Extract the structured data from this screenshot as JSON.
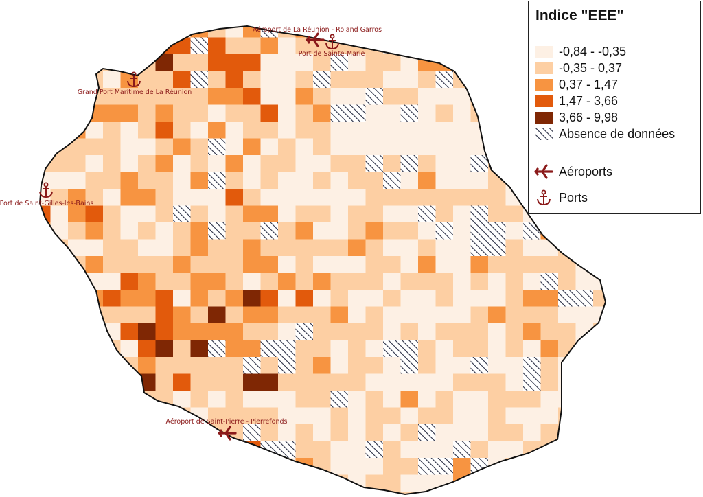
{
  "legend": {
    "title": "Indice \"EEE\"",
    "classes": [
      {
        "label": "-0,84 - -0,35",
        "color": "#fdf0e4"
      },
      {
        "label": "-0,35 - 0,37",
        "color": "#fdcfa3"
      },
      {
        "label": "0,37 - 1,47",
        "color": "#f79441"
      },
      {
        "label": "1,47 - 3,66",
        "color": "#e25a0c"
      },
      {
        "label": "3,66 - 9,98",
        "color": "#7f2704"
      }
    ],
    "nodata_label": "Absence de données",
    "airports_label": "Aéroports",
    "ports_label": "Ports"
  },
  "places": {
    "airport_north": "Aéroport de La Réunion - Roland Garros",
    "airport_south": "Aéroport de Saint-Pierre - Pierrefonds",
    "port_sainte_marie": "Port de Sainte-Marie",
    "port_grand": "Grand Port Maritime de La Réunion",
    "port_saint_gilles": "Port de Saint-Gilles-les-Bains"
  },
  "colors": {
    "marker": "#8b1a1a",
    "outline": "#111111",
    "hatch": "#2a2f45"
  }
}
